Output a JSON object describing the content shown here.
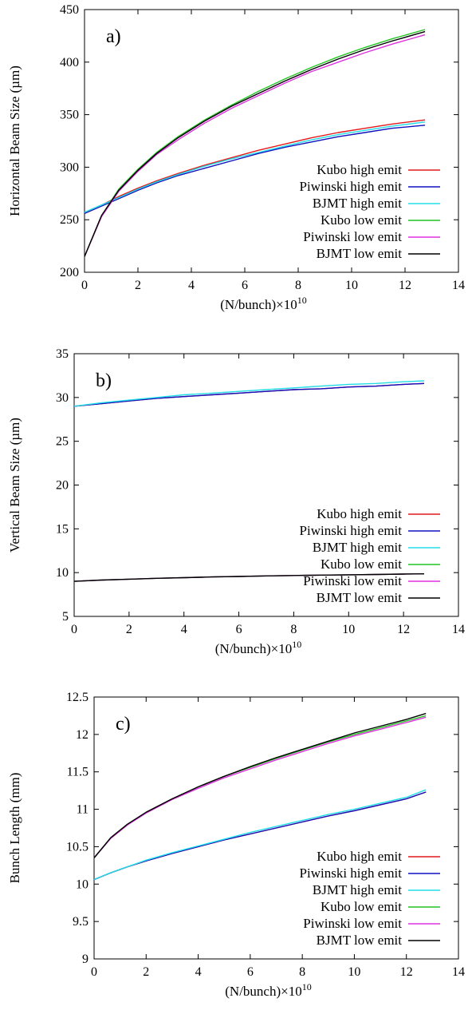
{
  "chart_data": [
    {
      "type": "line",
      "panel_label": "a)",
      "xlabel": "(N/bunch)×10",
      "xlabel_exp": "10",
      "ylabel": "Horizontal Beam Size (µm)",
      "xlim": [
        0,
        14
      ],
      "ylim": [
        200,
        450
      ],
      "xticks": [
        0,
        2,
        4,
        6,
        8,
        10,
        12,
        14
      ],
      "yticks": [
        200,
        250,
        300,
        350,
        400,
        450
      ],
      "legend_position": "lower-right",
      "x": [
        0,
        0.64,
        1.28,
        2,
        2.7,
        3.5,
        4.5,
        5.5,
        6.5,
        7.5,
        8.5,
        9.5,
        10.5,
        11.5,
        12.75
      ],
      "series": [
        {
          "name": "Kubo high emit",
          "color": "#e31a1c",
          "values": [
            257,
            264,
            272,
            280,
            287,
            294,
            302,
            309,
            316,
            322,
            328,
            333,
            337,
            341,
            345
          ]
        },
        {
          "name": "Piwinski high emit",
          "color": "#1010c0",
          "values": [
            256,
            263,
            270,
            278,
            285,
            292,
            299,
            306,
            313,
            319,
            324,
            329,
            333,
            337,
            340
          ]
        },
        {
          "name": "BJMT high emit",
          "color": "#22dde6",
          "values": [
            257,
            264,
            271,
            279,
            286,
            293,
            301,
            308,
            314,
            320,
            326,
            331,
            335,
            339,
            343
          ]
        },
        {
          "name": "Kubo low emit",
          "color": "#22c422",
          "values": [
            215,
            254,
            279,
            298,
            314,
            329,
            345,
            359,
            372,
            384,
            395,
            405,
            414,
            422,
            431
          ]
        },
        {
          "name": "Piwinski low emit",
          "color": "#e030e0",
          "values": [
            215,
            253,
            277,
            296,
            312,
            326,
            342,
            356,
            368,
            380,
            391,
            400,
            409,
            417,
            426
          ]
        },
        {
          "name": "BJMT low emit",
          "color": "#000000",
          "values": [
            215,
            254,
            278,
            297,
            313,
            328,
            344,
            358,
            370,
            382,
            393,
            403,
            412,
            420,
            429
          ]
        }
      ]
    },
    {
      "type": "line",
      "panel_label": "b)",
      "xlabel": "(N/bunch)×10",
      "xlabel_exp": "10",
      "ylabel": "Vertical Beam Size (µm)",
      "xlim": [
        0,
        14
      ],
      "ylim": [
        5,
        35
      ],
      "xticks": [
        0,
        2,
        4,
        6,
        8,
        10,
        12,
        14
      ],
      "yticks": [
        5,
        10,
        15,
        20,
        25,
        30,
        35
      ],
      "legend_position": "lower-right",
      "x": [
        0,
        1,
        2,
        3,
        4,
        5,
        6,
        7,
        8,
        9,
        10,
        11,
        12,
        12.75
      ],
      "series": [
        {
          "name": "Kubo high emit",
          "color": "#e31a1c",
          "values": [
            29.0,
            29.3,
            29.6,
            29.9,
            30.1,
            30.3,
            30.5,
            30.7,
            30.9,
            31.0,
            31.2,
            31.3,
            31.5,
            31.6
          ]
        },
        {
          "name": "Piwinski high emit",
          "color": "#1010c0",
          "values": [
            29.0,
            29.3,
            29.6,
            29.9,
            30.1,
            30.3,
            30.5,
            30.7,
            30.9,
            31.0,
            31.2,
            31.3,
            31.5,
            31.6
          ]
        },
        {
          "name": "BJMT high emit",
          "color": "#22dde6",
          "values": [
            29.0,
            29.4,
            29.7,
            30.0,
            30.3,
            30.5,
            30.7,
            30.9,
            31.1,
            31.3,
            31.5,
            31.6,
            31.8,
            31.9
          ]
        },
        {
          "name": "Kubo low emit",
          "color": "#22c422",
          "values": [
            9.0,
            9.15,
            9.25,
            9.35,
            9.42,
            9.5,
            9.56,
            9.62,
            9.67,
            9.71,
            9.75,
            9.79,
            9.83,
            9.86
          ]
        },
        {
          "name": "Piwinski low emit",
          "color": "#e030e0",
          "values": [
            9.0,
            9.15,
            9.25,
            9.35,
            9.42,
            9.5,
            9.56,
            9.62,
            9.67,
            9.71,
            9.75,
            9.79,
            9.83,
            9.86
          ]
        },
        {
          "name": "BJMT low emit",
          "color": "#000000",
          "values": [
            9.0,
            9.15,
            9.25,
            9.35,
            9.42,
            9.5,
            9.56,
            9.62,
            9.67,
            9.71,
            9.75,
            9.79,
            9.83,
            9.86
          ]
        }
      ]
    },
    {
      "type": "line",
      "panel_label": "c)",
      "xlabel": "(N/bunch)×10",
      "xlabel_exp": "10",
      "ylabel": "Bunch Length (mm)",
      "xlim": [
        0,
        14
      ],
      "ylim": [
        9,
        12.5
      ],
      "xticks": [
        0,
        2,
        4,
        6,
        8,
        10,
        12,
        14
      ],
      "yticks": [
        9,
        9.5,
        10,
        10.5,
        11,
        11.5,
        12,
        12.5
      ],
      "legend_position": "lower-right",
      "x": [
        0,
        0.64,
        1.28,
        2,
        3,
        4,
        5,
        6,
        7,
        8,
        9,
        10,
        11,
        12,
        12.75
      ],
      "series": [
        {
          "name": "Kubo high emit",
          "color": "#e31a1c",
          "values": [
            10.06,
            10.15,
            10.23,
            10.31,
            10.41,
            10.5,
            10.59,
            10.67,
            10.75,
            10.83,
            10.91,
            10.98,
            11.06,
            11.14,
            11.23
          ]
        },
        {
          "name": "Piwinski high emit",
          "color": "#1010c0",
          "values": [
            10.06,
            10.15,
            10.23,
            10.31,
            10.41,
            10.5,
            10.59,
            10.67,
            10.75,
            10.83,
            10.91,
            10.98,
            11.06,
            11.14,
            11.23
          ]
        },
        {
          "name": "BJMT high emit",
          "color": "#22dde6",
          "values": [
            10.06,
            10.15,
            10.23,
            10.32,
            10.42,
            10.51,
            10.6,
            10.69,
            10.77,
            10.85,
            10.93,
            11.0,
            11.08,
            11.16,
            11.26
          ]
        },
        {
          "name": "Kubo low emit",
          "color": "#22c422",
          "values": [
            10.35,
            10.62,
            10.8,
            10.96,
            11.14,
            11.3,
            11.44,
            11.56,
            11.68,
            11.79,
            11.9,
            12.0,
            12.09,
            12.18,
            12.25
          ]
        },
        {
          "name": "Piwinski low emit",
          "color": "#e030e0",
          "values": [
            10.35,
            10.61,
            10.79,
            10.95,
            11.13,
            11.28,
            11.42,
            11.54,
            11.66,
            11.77,
            11.88,
            11.98,
            12.07,
            12.16,
            12.23
          ]
        },
        {
          "name": "BJMT low emit",
          "color": "#000000",
          "values": [
            10.35,
            10.62,
            10.8,
            10.96,
            11.14,
            11.3,
            11.44,
            11.57,
            11.69,
            11.8,
            11.91,
            12.02,
            12.11,
            12.2,
            12.28
          ]
        }
      ]
    }
  ]
}
